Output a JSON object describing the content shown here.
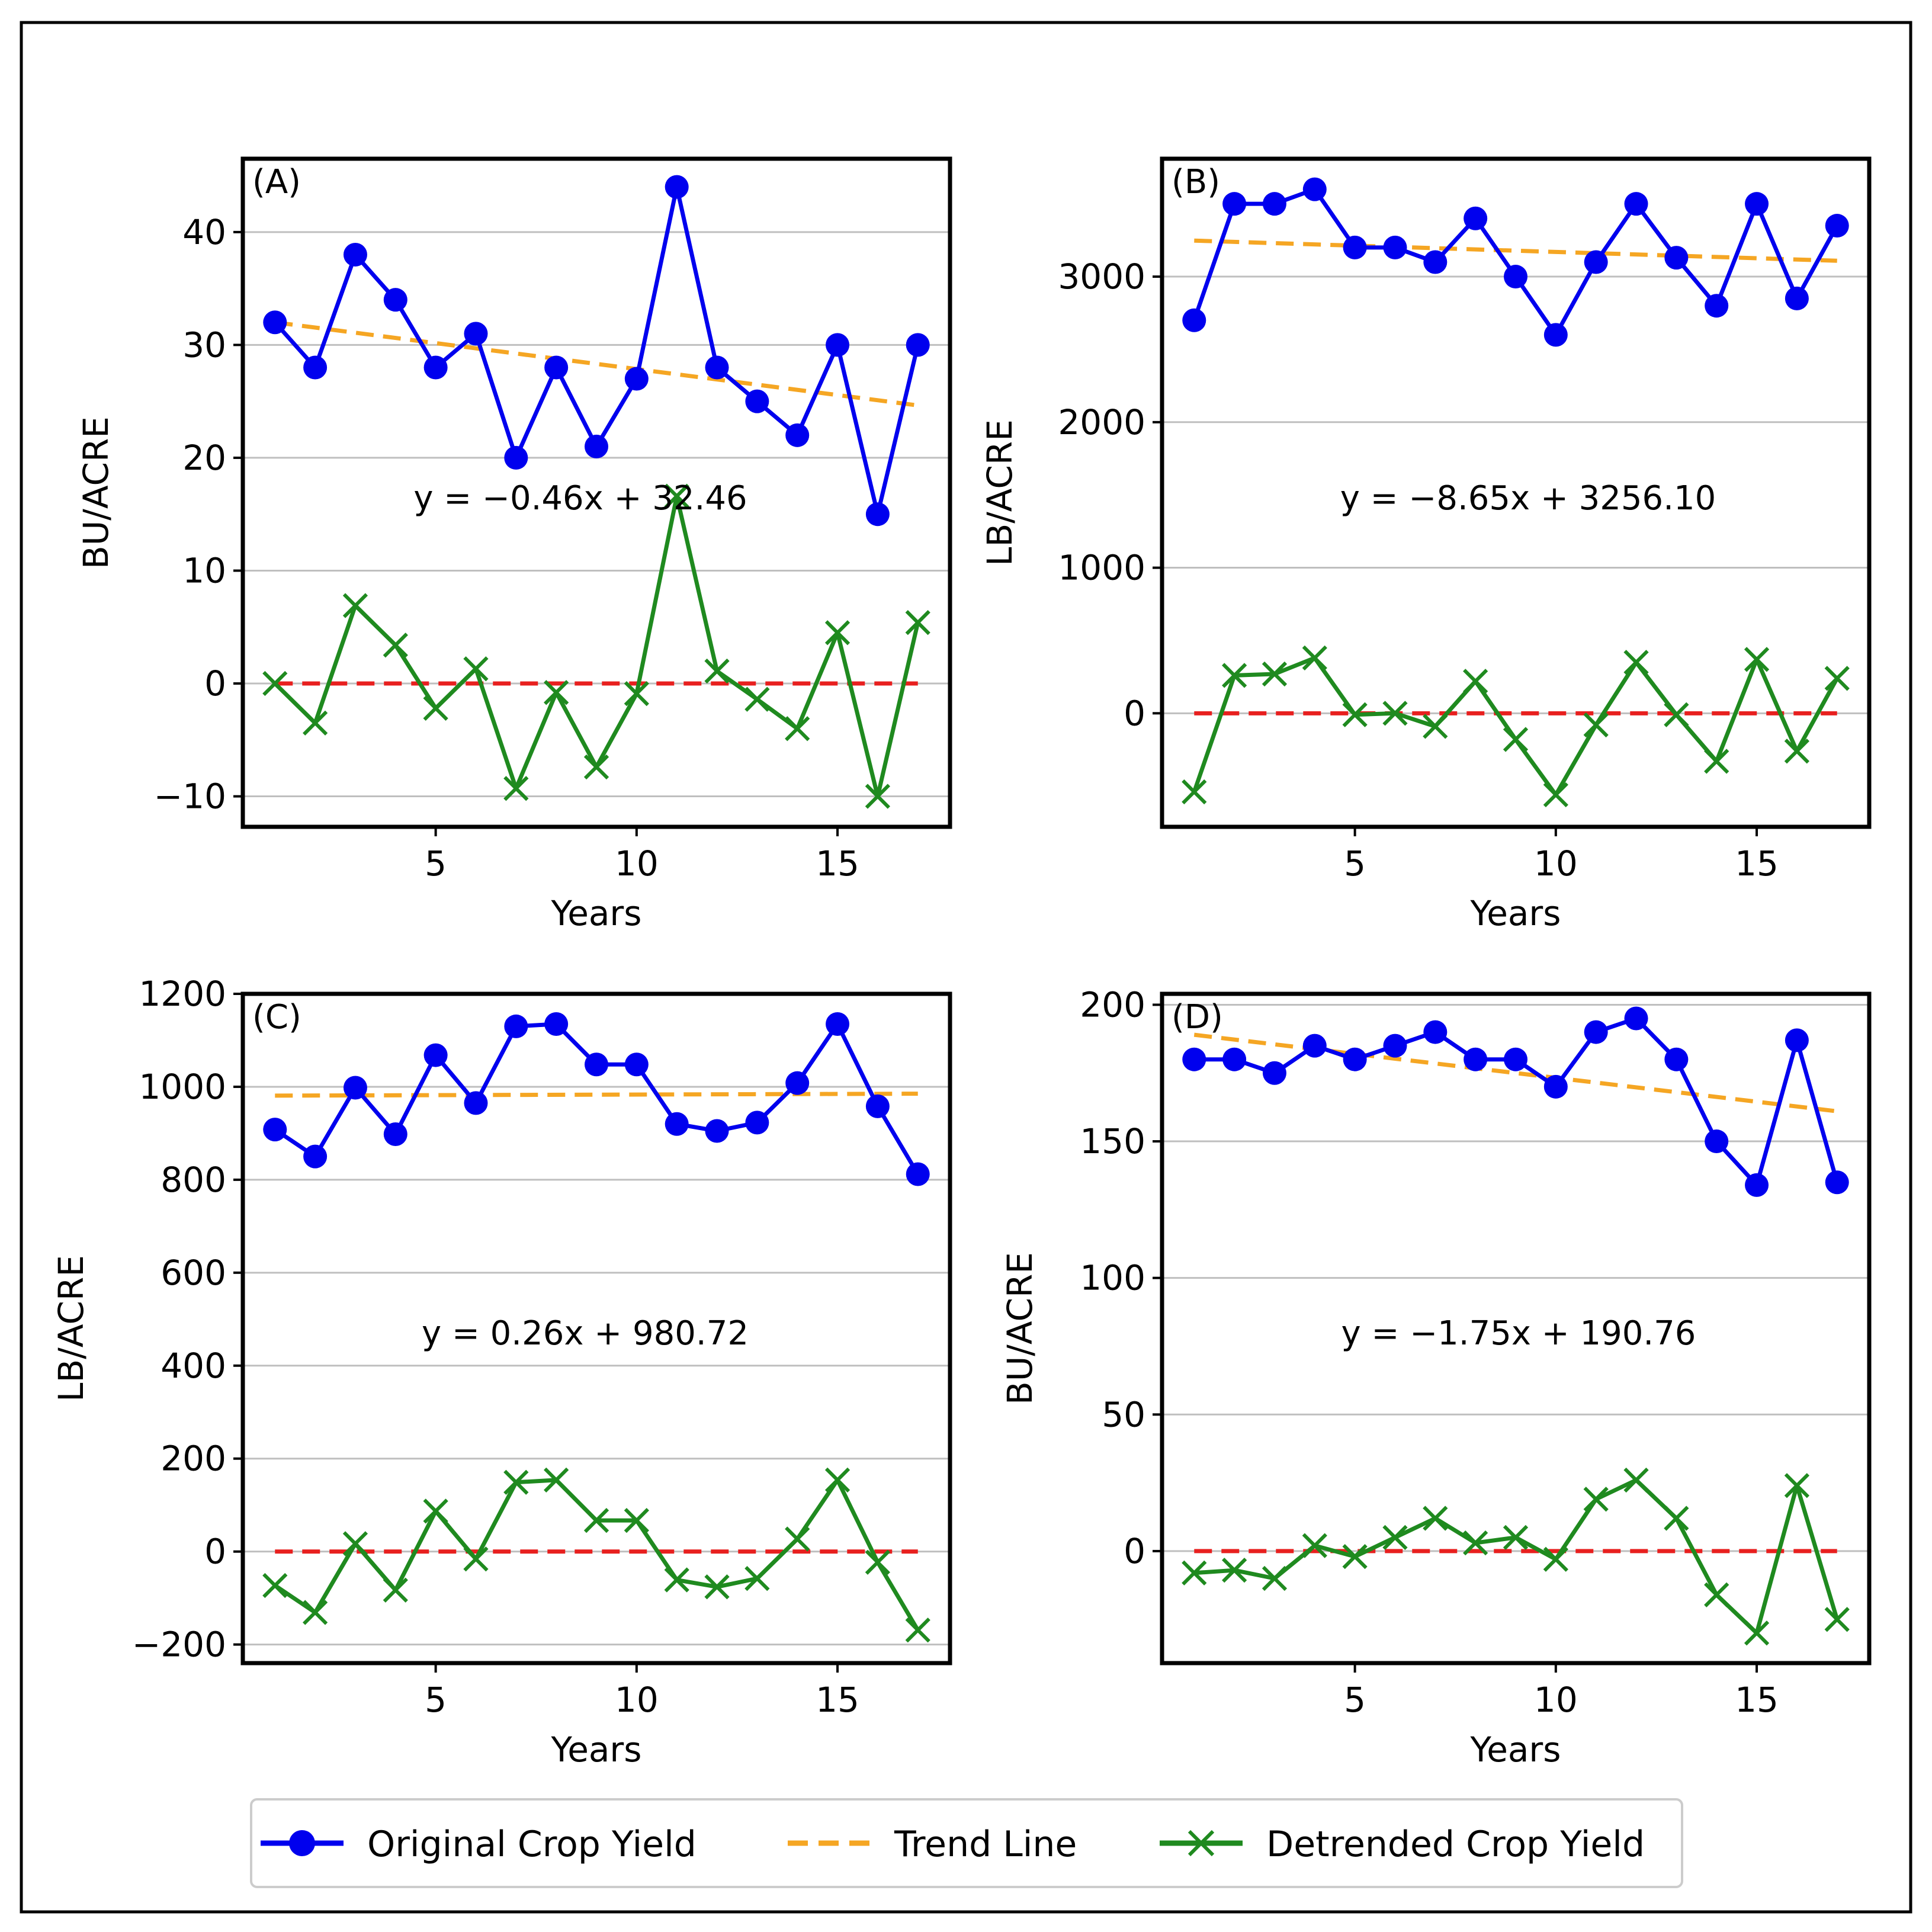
{
  "legend": {
    "original_label": "Original Crop Yield",
    "trend_label": "Trend Line",
    "detrended_label": "Detrended Crop Yield"
  },
  "colors": {
    "original": "#0000ee",
    "trend": "#f5a623",
    "detrended": "#1f8a1f",
    "zero_line": "#e8201f",
    "grid": "#bfbfbf",
    "axes": "#000000"
  },
  "chart_data": [
    {
      "type": "line",
      "panel_label": "(A)",
      "equation": "y = −0.46x + 32.46",
      "slope": -0.46,
      "intercept": 32.46,
      "xlabel": "Years",
      "ylabel": "BU/ACRE",
      "xlim": [
        0.2,
        17.8
      ],
      "ylim": [
        -12.7,
        46.5
      ],
      "xticks": [
        5,
        10,
        15
      ],
      "xtick_labels": [
        "5",
        "10",
        "15"
      ],
      "yticks": [
        -10,
        0,
        10,
        20,
        30,
        40
      ],
      "ytick_labels": [
        "−10",
        "0",
        "10",
        "20",
        "30",
        "40"
      ],
      "x": [
        1,
        2,
        3,
        4,
        5,
        6,
        7,
        8,
        9,
        10,
        11,
        12,
        13,
        14,
        15,
        16,
        17
      ],
      "series": [
        {
          "name": "Original Crop Yield",
          "values": [
            32,
            28,
            38,
            34,
            28,
            31,
            20,
            28,
            21,
            27,
            44,
            28,
            25,
            22,
            30,
            15,
            30
          ]
        },
        {
          "name": "Detrended Crop Yield",
          "values": [
            0,
            -3.5,
            6.9,
            3.4,
            -2.2,
            1.3,
            -9.3,
            -0.8,
            -7.4,
            -0.9,
            16.6,
            1.1,
            -1.4,
            -4,
            4.5,
            -10,
            5.4
          ]
        }
      ],
      "grid": true
    },
    {
      "type": "line",
      "panel_label": "(B)",
      "equation": "y = −8.65x + 3256.10",
      "slope": -8.65,
      "intercept": 3256.1,
      "xlabel": "Years",
      "ylabel": "LB/ACRE",
      "xlim": [
        0.2,
        17.8
      ],
      "ylim": [
        -780,
        3810
      ],
      "xticks": [
        5,
        10,
        15
      ],
      "xtick_labels": [
        "5",
        "10",
        "15"
      ],
      "yticks": [
        0,
        1000,
        2000,
        3000
      ],
      "ytick_labels": [
        "0",
        "1000",
        "2000",
        "3000"
      ],
      "x": [
        1,
        2,
        3,
        4,
        5,
        6,
        7,
        8,
        9,
        10,
        11,
        12,
        13,
        14,
        15,
        16,
        17
      ],
      "series": [
        {
          "name": "Original Crop Yield",
          "values": [
            2700,
            3500,
            3500,
            3600,
            3200,
            3200,
            3100,
            3400,
            3000,
            2600,
            3100,
            3500,
            3130,
            2800,
            3500,
            2850,
            3350
          ]
        },
        {
          "name": "Detrended Crop Yield",
          "values": [
            -540,
            260,
            270,
            380,
            -10,
            0,
            -90,
            220,
            -180,
            -560,
            -80,
            350,
            -10,
            -330,
            370,
            -260,
            240
          ]
        }
      ],
      "grid": true
    },
    {
      "type": "line",
      "panel_label": "(C)",
      "equation": "y = 0.26x + 980.72",
      "slope": 0.26,
      "intercept": 980.72,
      "xlabel": "Years",
      "ylabel": "LB/ACRE",
      "xlim": [
        0.2,
        17.8
      ],
      "ylim": [
        -240,
        1200
      ],
      "xticks": [
        5,
        10,
        15
      ],
      "xtick_labels": [
        "5",
        "10",
        "15"
      ],
      "yticks": [
        -200,
        0,
        200,
        400,
        600,
        800,
        1000,
        1200
      ],
      "ytick_labels": [
        "−200",
        "0",
        "200",
        "400",
        "600",
        "800",
        "1000",
        "1200"
      ],
      "x": [
        1,
        2,
        3,
        4,
        5,
        6,
        7,
        8,
        9,
        10,
        11,
        12,
        13,
        14,
        15,
        16,
        17
      ],
      "series": [
        {
          "name": "Original Crop Yield",
          "values": [
            908,
            850,
            998,
            898,
            1068,
            965,
            1130,
            1135,
            1048,
            1048,
            920,
            905,
            923,
            1008,
            1135,
            958,
            812
          ]
        },
        {
          "name": "Detrended Crop Yield",
          "values": [
            -73,
            -131,
            17,
            -83,
            87,
            -16,
            149,
            154,
            67,
            67,
            -61,
            -76,
            -58,
            27,
            154,
            -23,
            -169
          ]
        }
      ],
      "grid": true
    },
    {
      "type": "line",
      "panel_label": "(D)",
      "equation": "y = −1.75x + 190.76",
      "slope": -1.75,
      "intercept": 190.76,
      "xlabel": "Years",
      "ylabel": "BU/ACRE",
      "xlim": [
        0.2,
        17.8
      ],
      "ylim": [
        -41,
        204
      ],
      "xticks": [
        5,
        10,
        15
      ],
      "xtick_labels": [
        "5",
        "10",
        "15"
      ],
      "yticks": [
        0,
        50,
        100,
        150,
        200
      ],
      "ytick_labels": [
        "0",
        "50",
        "100",
        "150",
        "200"
      ],
      "x": [
        1,
        2,
        3,
        4,
        5,
        6,
        7,
        8,
        9,
        10,
        11,
        12,
        13,
        14,
        15,
        16,
        17
      ],
      "series": [
        {
          "name": "Original Crop Yield",
          "values": [
            180,
            180,
            175,
            185,
            180,
            185,
            190,
            180,
            180,
            170,
            190,
            195,
            180,
            150,
            134,
            187,
            135
          ]
        },
        {
          "name": "Detrended Crop Yield",
          "values": [
            -8,
            -7,
            -10,
            2,
            -2,
            5,
            12,
            3,
            5,
            -3,
            19,
            26,
            12,
            -16,
            -30,
            24,
            -25
          ]
        }
      ],
      "grid": true
    }
  ]
}
